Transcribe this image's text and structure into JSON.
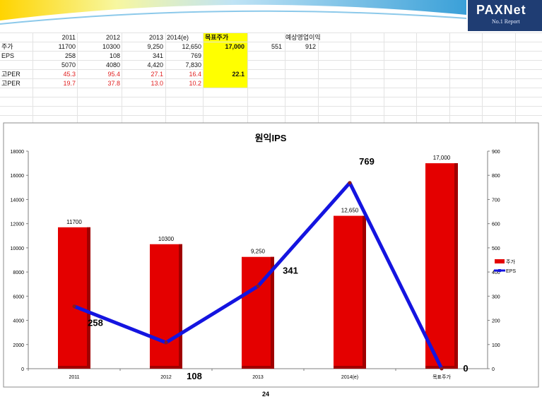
{
  "header": {
    "logo_main": "PAXNet",
    "logo_sub": "No.1 Report"
  },
  "colors": {
    "bar": "#e40000",
    "bar_dark": "#a00000",
    "line": "#1414e0",
    "highlight": "#ffff00",
    "text_red": "#e01e1e",
    "header_blue": "#1f3d73"
  },
  "sheet": {
    "headers": [
      "2011",
      "2012",
      "2013",
      "2014(e)",
      "목표주가",
      "",
      "예상영업이익"
    ],
    "rows": [
      {
        "label": "주가",
        "cells": [
          "11700",
          "10300",
          "9,250",
          "12,650",
          "17,000",
          "551",
          "912"
        ]
      },
      {
        "label": "EPS",
        "cells": [
          "258",
          "108",
          "341",
          "769",
          "",
          "",
          ""
        ]
      },
      {
        "label": "",
        "cells": [
          "5070",
          "4080",
          "4,420",
          "7,830",
          "",
          "",
          ""
        ]
      },
      {
        "label": "고PER",
        "cells": [
          "45.3",
          "95.4",
          "27.1",
          "16.4",
          "22.1",
          "",
          ""
        ]
      },
      {
        "label": "고PER",
        "cells": [
          "19.7",
          "37.8",
          "13.0",
          "10.2",
          "",
          "",
          ""
        ]
      }
    ]
  },
  "chart_data": {
    "type": "bar",
    "title": "원익IPS",
    "categories": [
      "2011",
      "2012",
      "2013",
      "2014(e)",
      "목표주가"
    ],
    "series": [
      {
        "name": "주가",
        "type": "bar",
        "axis": "left",
        "values": [
          11700,
          10300,
          9250,
          12650,
          17000
        ],
        "labels": [
          "11700",
          "10300",
          "9,250",
          "12,650",
          "17,000"
        ]
      },
      {
        "name": "EPS",
        "type": "line",
        "axis": "right",
        "values": [
          258,
          108,
          341,
          769,
          0
        ],
        "labels": [
          "258",
          "108",
          "341",
          "769",
          "0"
        ]
      }
    ],
    "ylim": [
      0,
      18000
    ],
    "yticks": [
      "0",
      "2000",
      "4000",
      "6000",
      "8000",
      "10000",
      "12000",
      "14000",
      "16000",
      "18000"
    ],
    "y2lim": [
      0,
      900
    ],
    "y2ticks": [
      "0",
      "100",
      "200",
      "300",
      "400",
      "500",
      "600",
      "700",
      "800",
      "900"
    ],
    "legend": "right"
  },
  "footer": {
    "page": "24"
  }
}
